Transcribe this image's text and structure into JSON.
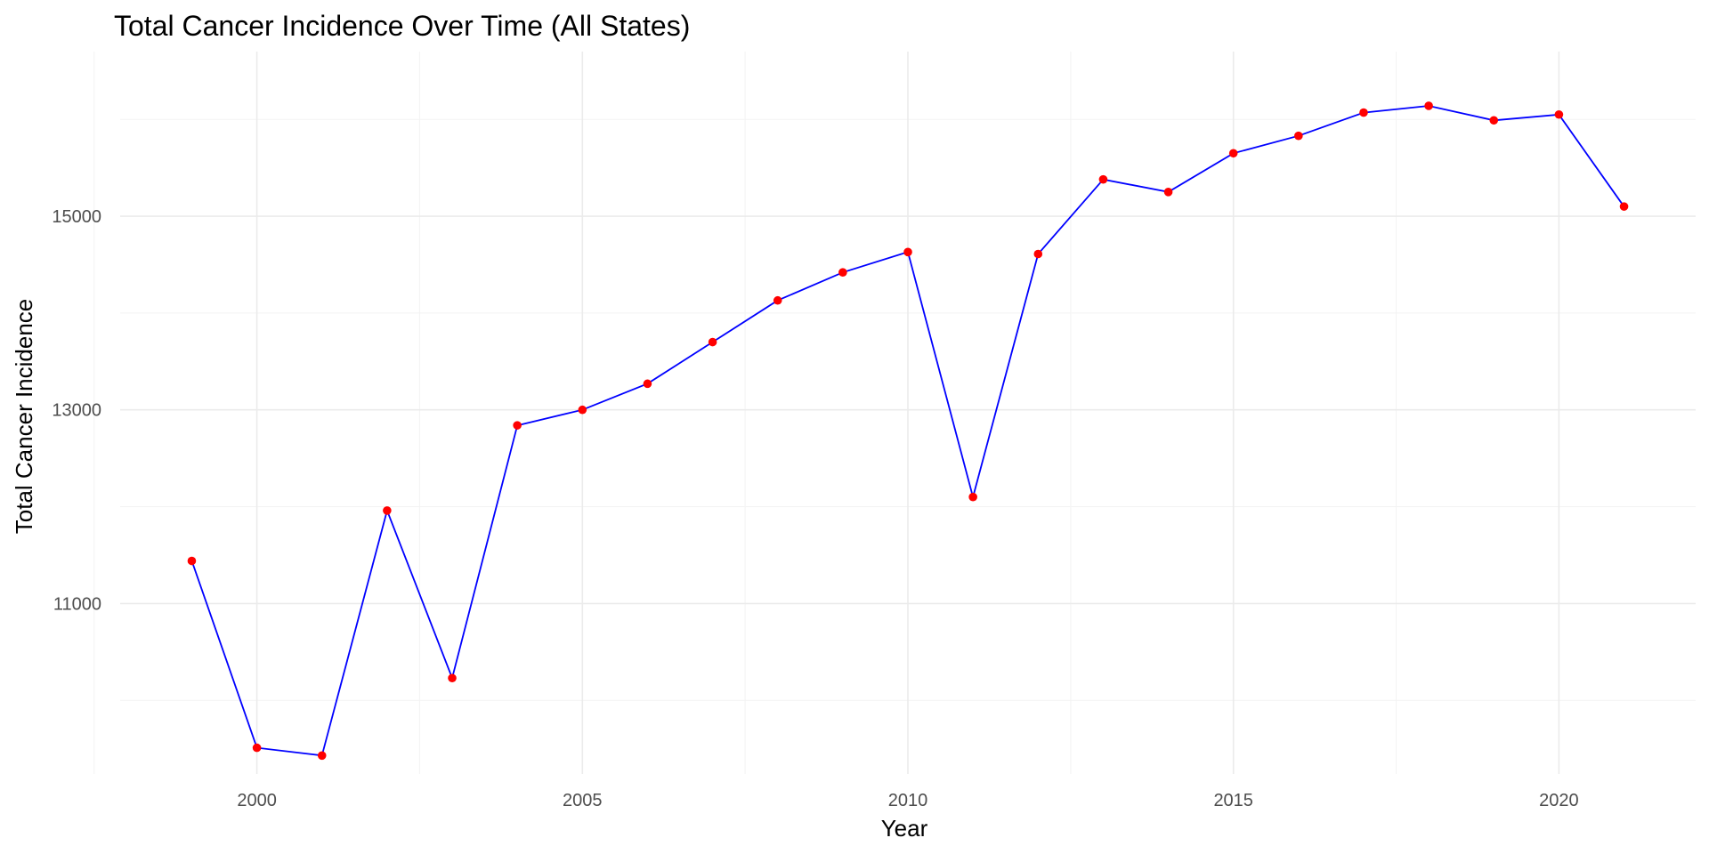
{
  "chart_data": {
    "type": "line",
    "title": "Total Cancer Incidence Over Time (All States)",
    "xlabel": "Year",
    "ylabel": "Total Cancer Incidence",
    "x": [
      1999,
      2000,
      2001,
      2002,
      2003,
      2004,
      2005,
      2006,
      2007,
      2008,
      2009,
      2010,
      2011,
      2012,
      2013,
      2014,
      2015,
      2016,
      2017,
      2018,
      2019,
      2020,
      2021
    ],
    "series": [
      {
        "values": [
          11440,
          9510,
          9430,
          11960,
          10230,
          12840,
          13000,
          13270,
          13700,
          14130,
          14420,
          14630,
          12100,
          14610,
          15380,
          15250,
          15650,
          15830,
          16070,
          16140,
          15990,
          16050,
          15100
        ],
        "line_color": "#0000ff",
        "point_color": "#ff0000"
      }
    ],
    "xlim": [
      1997.9,
      2022.1
    ],
    "ylim": [
      9240,
      16700
    ],
    "x_ticks": [
      2000,
      2005,
      2010,
      2015,
      2020
    ],
    "x_tick_labels": [
      "2000",
      "2005",
      "2010",
      "2015",
      "2020"
    ],
    "y_ticks": [
      11000,
      13000,
      15000
    ],
    "y_tick_labels": [
      "11000",
      "13000",
      "15000"
    ],
    "x_minor_ticks": [
      1997.5,
      2002.5,
      2007.5,
      2012.5,
      2017.5
    ],
    "y_minor_ticks": [
      10000,
      12000,
      14000,
      16000
    ],
    "grid": true,
    "legend": "none"
  }
}
